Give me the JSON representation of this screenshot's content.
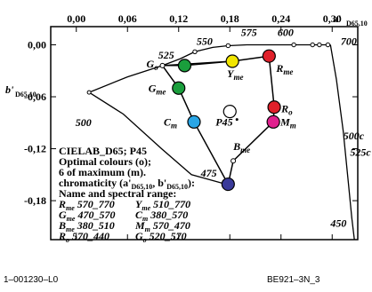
{
  "chart_data": {
    "type": "scatter",
    "x_ticks": [
      "0,00",
      "0,06",
      "0,12",
      "0,18",
      "0,24",
      "0,30"
    ],
    "x_tick_values": [
      0.0,
      0.06,
      0.12,
      0.18,
      0.24,
      0.3
    ],
    "y_ticks": [
      "0,00",
      "-0,06",
      "-0,12",
      "-0,18"
    ],
    "y_tick_values": [
      0.0,
      -0.06,
      -0.12,
      -0.18
    ],
    "xlim": [
      -0.03,
      0.33
    ],
    "ylim": [
      -0.225,
      0.021
    ],
    "xlabel": "a'",
    "xlabel_sub": "D65,10",
    "ylabel": "b'",
    "ylabel_sub": "D65,10",
    "spectral_locus": [
      {
        "x": 0.015,
        "y": -0.055
      },
      {
        "x": 0.06,
        "y": -0.037
      },
      {
        "x": 0.101,
        "y": -0.024
      },
      {
        "x": 0.122,
        "y": -0.016
      },
      {
        "x": 0.139,
        "y": -0.008
      },
      {
        "x": 0.16,
        "y": -0.003
      },
      {
        "x": 0.178,
        "y": -0.001
      },
      {
        "x": 0.2,
        "y": 0.0
      },
      {
        "x": 0.255,
        "y": 0.0
      },
      {
        "x": 0.277,
        "y": 0.0
      },
      {
        "x": 0.285,
        "y": 0.0
      },
      {
        "x": 0.295,
        "y": 0.0
      },
      {
        "x": 0.298,
        "y": 0.0
      }
    ],
    "purple_line": [
      {
        "x": 0.298,
        "y": 0.0
      },
      {
        "x": 0.305,
        "y": -0.04
      },
      {
        "x": 0.313,
        "y": -0.1
      },
      {
        "x": 0.319,
        "y": -0.16
      },
      {
        "x": 0.323,
        "y": -0.2
      },
      {
        "x": 0.326,
        "y": -0.225
      }
    ],
    "blue_line": [
      {
        "x": 0.015,
        "y": -0.055
      },
      {
        "x": 0.055,
        "y": -0.08
      },
      {
        "x": 0.1,
        "y": -0.12
      },
      {
        "x": 0.135,
        "y": -0.15
      },
      {
        "x": 0.172,
        "y": -0.16
      }
    ],
    "tick_points": [
      {
        "x": 0.101,
        "y": -0.024
      },
      {
        "x": 0.139,
        "y": -0.008
      },
      {
        "x": 0.178,
        "y": -0.001
      },
      {
        "x": 0.255,
        "y": 0.0
      },
      {
        "x": 0.277,
        "y": 0.0
      },
      {
        "x": 0.285,
        "y": 0.0
      },
      {
        "x": 0.295,
        "y": 0.0
      }
    ],
    "wavelength_labels": [
      {
        "text": "525",
        "x": 0.096,
        "y": -0.016
      },
      {
        "text": "550",
        "x": 0.141,
        "y": 0.0
      },
      {
        "text": "575",
        "x": 0.193,
        "y": 0.01
      },
      {
        "text": "600",
        "x": 0.236,
        "y": 0.01
      },
      {
        "text": "700",
        "x": 0.31,
        "y": 0.0
      },
      {
        "text": "500",
        "x": -0.001,
        "y": -0.094
      },
      {
        "text": "500c",
        "x": 0.313,
        "y": -0.109
      },
      {
        "text": "525c",
        "x": 0.321,
        "y": -0.128
      },
      {
        "text": "450",
        "x": 0.298,
        "y": -0.21
      },
      {
        "text": "475",
        "x": 0.146,
        "y": -0.152
      }
    ],
    "gamut_polygon": [
      "Yme",
      "Rme",
      "R",
      "Mme",
      "Bme",
      "B",
      "Cme",
      "Gme",
      "G"
    ],
    "points": [
      {
        "id": "G",
        "label": "G",
        "sub": "o",
        "x": 0.101,
        "y": -0.024,
        "color": "#ffffff",
        "dot": true,
        "label_dx": -18,
        "label_dy": 2
      },
      {
        "id": "G2",
        "label": "",
        "sub": "",
        "x": 0.127,
        "y": -0.024,
        "color": "#1a9e3c",
        "dot": false,
        "label_dx": 0,
        "label_dy": 0
      },
      {
        "id": "Yme",
        "label": "Y",
        "sub": "me",
        "x": 0.183,
        "y": -0.019,
        "color": "#f2e600",
        "dot": false,
        "label_dx": -6,
        "label_dy": 18
      },
      {
        "id": "Rme",
        "label": "R",
        "sub": "me",
        "x": 0.226,
        "y": -0.013,
        "color": "#e0202a",
        "dot": false,
        "label_dx": 8,
        "label_dy": 18
      },
      {
        "id": "R",
        "label": "R",
        "sub": "o",
        "x": 0.232,
        "y": -0.072,
        "color": "#e0202a",
        "dot": false,
        "label_dx": 8,
        "label_dy": 6
      },
      {
        "id": "Mme",
        "label": "M",
        "sub": "m",
        "x": 0.231,
        "y": -0.089,
        "color": "#e0208e",
        "dot": false,
        "label_dx": 8,
        "label_dy": 4
      },
      {
        "id": "Bme",
        "label": "B",
        "sub": "me",
        "x": 0.184,
        "y": -0.134,
        "color": "#e8e0f0",
        "dot": true,
        "label_dx": 0,
        "label_dy": -12
      },
      {
        "id": "B",
        "label": "",
        "sub": "",
        "x": 0.178,
        "y": -0.161,
        "color": "#3a3a9a",
        "dot": false,
        "label_dx": 0,
        "label_dy": 0
      },
      {
        "id": "Cme",
        "label": "C",
        "sub": "m",
        "x": 0.138,
        "y": -0.089,
        "color": "#2aa6e6",
        "dot": false,
        "label_dx": -34,
        "label_dy": 4
      },
      {
        "id": "Gme",
        "label": "G",
        "sub": "me",
        "x": 0.12,
        "y": -0.05,
        "color": "#1a9e3c",
        "dot": false,
        "label_dx": -34,
        "label_dy": 4
      },
      {
        "id": "P45",
        "label": "P45",
        "sub": "",
        "x": 0.18,
        "y": -0.077,
        "color": "#ffffff",
        "dot": false,
        "label_dx": -16,
        "label_dy": 16
      }
    ],
    "legend_lines": [
      "CIELAB_D65; P45",
      "Optimal colours (o);",
      "6 of maximum (m).",
      "chromaticity (a'D65,10, b'D65,10):",
      "Name and spectral range:"
    ],
    "legend_ranges": [
      [
        "Rme",
        "570_770",
        "Yme",
        "510_770"
      ],
      [
        "Gme",
        "470_570",
        "Cm",
        "380_570"
      ],
      [
        "Bme",
        "380_510",
        "Mm",
        "570_470"
      ],
      [
        "Ro",
        "570_440",
        "Go",
        "520_570"
      ]
    ]
  },
  "footer": {
    "left": "1–001230–L0",
    "right": "BE921–3N_3"
  }
}
